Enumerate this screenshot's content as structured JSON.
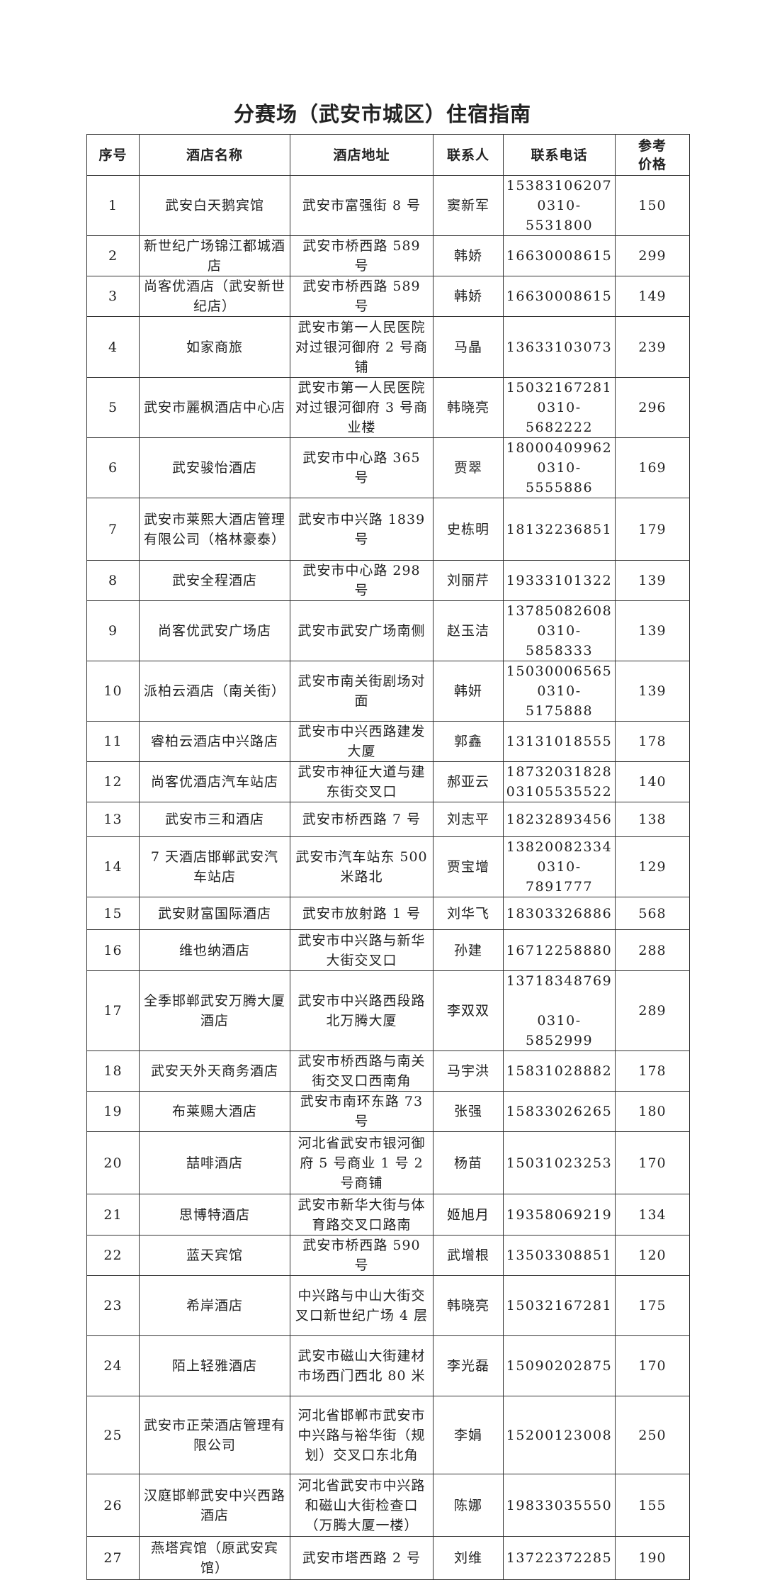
{
  "title": "分赛场（武安市城区）住宿指南",
  "columns": [
    "序号",
    "酒店名称",
    "酒店地址",
    "联系人",
    "联系电话",
    "参考价格"
  ],
  "rows": [
    {
      "no": "1",
      "name": "武安白天鹅宾馆",
      "address": "武安市富强街 8 号",
      "contact": "窦新军",
      "phone": [
        "15383106207",
        "0310-5531800"
      ],
      "price": "150"
    },
    {
      "no": "2",
      "name": "新世纪广场锦江都城酒店",
      "address": "武安市桥西路 589 号",
      "contact": "韩娇",
      "phone": [
        "16630008615"
      ],
      "price": "299"
    },
    {
      "no": "3",
      "name": "尚客优酒店（武安新世纪店）",
      "address": "武安市桥西路 589 号",
      "contact": "韩娇",
      "phone": [
        "16630008615"
      ],
      "price": "149"
    },
    {
      "no": "4",
      "name": "如家商旅",
      "address": "武安市第一人民医院对过银河御府 2 号商铺",
      "contact": "马晶",
      "phone": [
        "13633103073"
      ],
      "price": "239"
    },
    {
      "no": "5",
      "name": "武安市麗枫酒店中心店",
      "address": "武安市第一人民医院对过银河御府 3 号商业楼",
      "contact": "韩晓亮",
      "phone": [
        "15032167281",
        "0310-5682222"
      ],
      "price": "296"
    },
    {
      "no": "6",
      "name": "武安骏怡酒店",
      "address": "武安市中心路 365 号",
      "contact": "贾翠",
      "phone": [
        "18000409962",
        "0310-5555886"
      ],
      "price": "169"
    },
    {
      "no": "7",
      "name": "武安市莱熙大酒店管理有限公司（格林豪泰）",
      "address": "武安市中兴路 1839 号",
      "contact": "史栋明",
      "phone": [
        "18132236851"
      ],
      "price": "179"
    },
    {
      "no": "8",
      "name": "武安全程酒店",
      "address": "武安市中心路 298 号",
      "contact": "刘丽芹",
      "phone": [
        "19333101322"
      ],
      "price": "139"
    },
    {
      "no": "9",
      "name": "尚客优武安广场店",
      "address": "武安市武安广场南侧",
      "contact": "赵玉洁",
      "phone": [
        "13785082608",
        "0310-5858333"
      ],
      "price": "139"
    },
    {
      "no": "10",
      "name": "派柏云酒店（南关街）",
      "address": "武安市南关街剧场对面",
      "contact": "韩妍",
      "phone": [
        "15030006565",
        "0310-5175888"
      ],
      "price": "139"
    },
    {
      "no": "11",
      "name": "睿柏云酒店中兴路店",
      "address": "武安市中兴西路建发大厦",
      "contact": "郭鑫",
      "phone": [
        "13131018555"
      ],
      "price": "178"
    },
    {
      "no": "12",
      "name": "尚客优酒店汽车站店",
      "address": "武安市神征大道与建东街交叉口",
      "contact": "郝亚云",
      "phone": [
        "18732031828",
        "03105535522"
      ],
      "price": "140"
    },
    {
      "no": "13",
      "name": "武安市三和酒店",
      "address": "武安市桥西路 7 号",
      "contact": "刘志平",
      "phone": [
        "18232893456"
      ],
      "price": "138"
    },
    {
      "no": "14",
      "name": "7 天酒店邯郸武安汽车站店",
      "address": "武安市汽车站东 500 米路北",
      "contact": "贾宝增",
      "phone": [
        "13820082334",
        "0310-7891777"
      ],
      "price": "129"
    },
    {
      "no": "15",
      "name": "武安财富国际酒店",
      "address": "武安市放射路 1 号",
      "contact": "刘华飞",
      "phone": [
        "18303326886"
      ],
      "price": "568"
    },
    {
      "no": "16",
      "name": "维也纳酒店",
      "address": "武安市中兴路与新华大街交叉口",
      "contact": "孙建",
      "phone": [
        "16712258880"
      ],
      "price": "288"
    },
    {
      "no": "17",
      "name": "全季邯郸武安万腾大厦酒店",
      "address": "武安市中兴路西段路北万腾大厦",
      "contact": "李双双",
      "phone": [
        "13718348769",
        "0310-5852999"
      ],
      "price": "289"
    },
    {
      "no": "18",
      "name": "武安天外天商务酒店",
      "address": "武安市桥西路与南关街交叉口西南角",
      "contact": "马宇洪",
      "phone": [
        "15831028882"
      ],
      "price": "178"
    },
    {
      "no": "19",
      "name": "布莱赐大酒店",
      "address": "武安市南环东路 73 号",
      "contact": "张强",
      "phone": [
        "15833026265"
      ],
      "price": "180"
    },
    {
      "no": "20",
      "name": "喆啡酒店",
      "address": "河北省武安市银河御府 5 号商业 1 号 2 号商铺",
      "contact": "杨苗",
      "phone": [
        "15031023253"
      ],
      "price": "170"
    },
    {
      "no": "21",
      "name": "思博特酒店",
      "address": "武安市新华大街与体育路交叉口路南",
      "contact": "姬旭月",
      "phone": [
        "19358069219"
      ],
      "price": "134"
    },
    {
      "no": "22",
      "name": "蓝天宾馆",
      "address": "武安市桥西路 590 号",
      "contact": "武增根",
      "phone": [
        "13503308851"
      ],
      "price": "120"
    },
    {
      "no": "23",
      "name": "希岸酒店",
      "address": "中兴路与中山大街交叉口新世纪广场 4 层",
      "contact": "韩晓亮",
      "phone": [
        "15032167281"
      ],
      "price": "175"
    },
    {
      "no": "24",
      "name": "陌上轻雅酒店",
      "address": "武安市磁山大街建材市场西门西北 80 米",
      "contact": "李光磊",
      "phone": [
        "15090202875"
      ],
      "price": "170"
    },
    {
      "no": "25",
      "name": "武安市正荣酒店管理有限公司",
      "address": "河北省邯郸市武安市中兴路与裕华街（规划）交叉口东北角",
      "contact": "李娟",
      "phone": [
        "15200123008"
      ],
      "price": "250"
    },
    {
      "no": "26",
      "name": "汉庭邯郸武安中兴西路酒店",
      "address": "河北省武安市中兴路和磁山大街检查口（万腾大厦一楼）",
      "contact": "陈娜",
      "phone": [
        "19833035550"
      ],
      "price": "155"
    },
    {
      "no": "27",
      "name": "燕塔宾馆（原武安宾馆）",
      "address": "武安市塔西路 2 号",
      "contact": "刘维",
      "phone": [
        "13722372285"
      ],
      "price": "190"
    }
  ]
}
